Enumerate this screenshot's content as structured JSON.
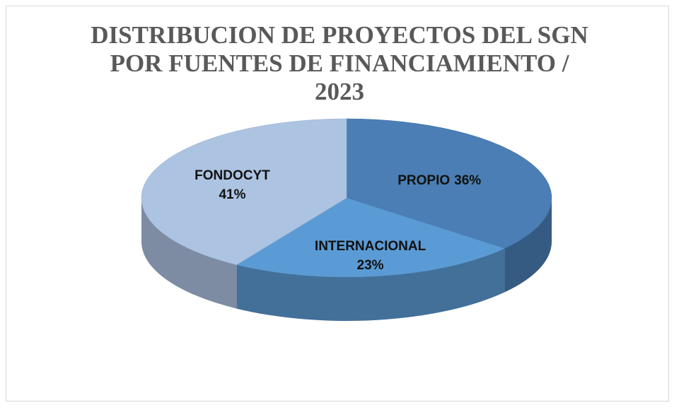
{
  "chart_data": {
    "type": "pie3d",
    "title": "DISTRIBUCION DE PROYECTOS DEL SGN POR FUENTES DE FINANCIAMIENTO / 2023",
    "categories": [
      "PROPIO",
      "INTERNACIONAL",
      "FONDOCYT"
    ],
    "values": [
      36,
      23,
      41
    ],
    "value_labels": [
      "36%",
      "23%",
      "41%"
    ],
    "colors": [
      "#4a7eb4",
      "#5b9bd5",
      "#adc3e2"
    ]
  }
}
